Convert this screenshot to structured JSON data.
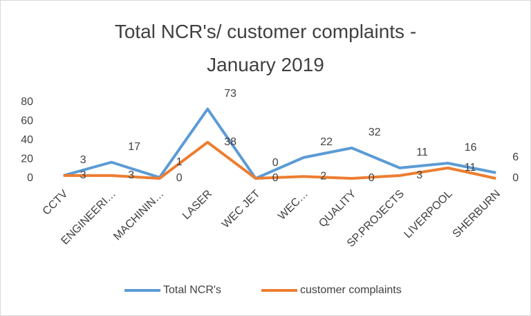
{
  "chart_data": {
    "type": "line",
    "title": "Total NCR's/ customer complaints - January 2019",
    "categories": [
      "CCTV",
      "ENGINEERI…",
      "MACHININ…",
      "LASER",
      "WEC JET",
      "WEC…",
      "QUALITY",
      "SP.PROJECTS",
      "LIVERPOOL",
      "SHERBURN"
    ],
    "series": [
      {
        "name": "Total NCR's",
        "color": "#5b9bd5",
        "values": [
          3,
          17,
          1,
          73,
          0,
          22,
          32,
          11,
          16,
          6
        ]
      },
      {
        "name": "customer complaints",
        "color": "#ed7d31",
        "values": [
          3,
          3,
          0,
          38,
          0,
          2,
          0,
          3,
          11,
          0
        ]
      }
    ],
    "ylim": [
      0,
      80
    ],
    "yticks": [
      0,
      20,
      40,
      60,
      80
    ],
    "grid": false,
    "legend": "bottom",
    "data_labels": true
  }
}
